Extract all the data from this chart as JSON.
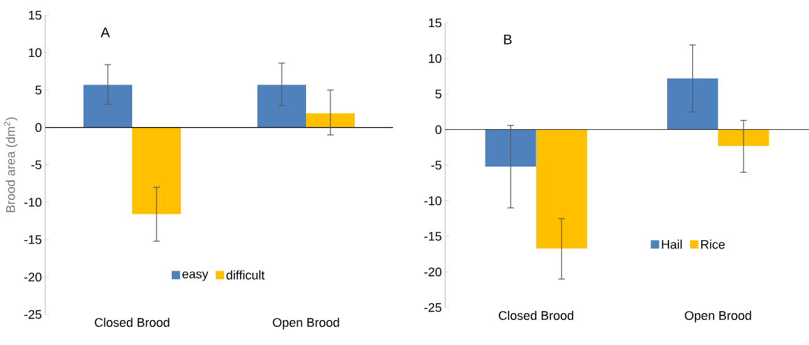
{
  "chart_data": [
    {
      "type": "bar",
      "annotations": [
        "A"
      ],
      "ylabel": "Brood area (dm$^{2}$)",
      "categories": [
        "Closed Brood",
        "Open Brood"
      ],
      "ylim": [
        -25,
        15
      ],
      "yticks": [
        -25,
        -20,
        -15,
        -10,
        -5,
        0,
        5,
        10,
        15
      ],
      "legend": "bottom",
      "series": [
        {
          "name": "easy",
          "color": "#4f81bd",
          "values": [
            5.7,
            5.7
          ],
          "errors": [
            [
              3.1,
              8.4
            ],
            [
              2.9,
              8.6
            ]
          ]
        },
        {
          "name": "difficult",
          "color": "#ffc000",
          "values": [
            -11.6,
            1.9
          ],
          "errors": [
            [
              -15.2,
              -8.0
            ],
            [
              -1.0,
              5.0
            ]
          ]
        }
      ]
    },
    {
      "type": "bar",
      "annotations": [
        "B"
      ],
      "categories": [
        "Closed Brood",
        "Open Brood"
      ],
      "ylim": [
        -25,
        15
      ],
      "yticks": [
        -25,
        -20,
        -15,
        -10,
        -5,
        0,
        5,
        10,
        15
      ],
      "legend": "bottom right",
      "series": [
        {
          "name": "Hail",
          "color": "#4f81bd",
          "values": [
            -5.2,
            7.2
          ],
          "errors": [
            [
              -11.0,
              0.6
            ],
            [
              2.5,
              11.9
            ]
          ]
        },
        {
          "name": "Rice",
          "color": "#ffc000",
          "values": [
            -16.7,
            -2.3
          ],
          "errors": [
            [
              -21.0,
              -12.5
            ],
            [
              -6.0,
              1.3
            ]
          ]
        }
      ]
    }
  ]
}
